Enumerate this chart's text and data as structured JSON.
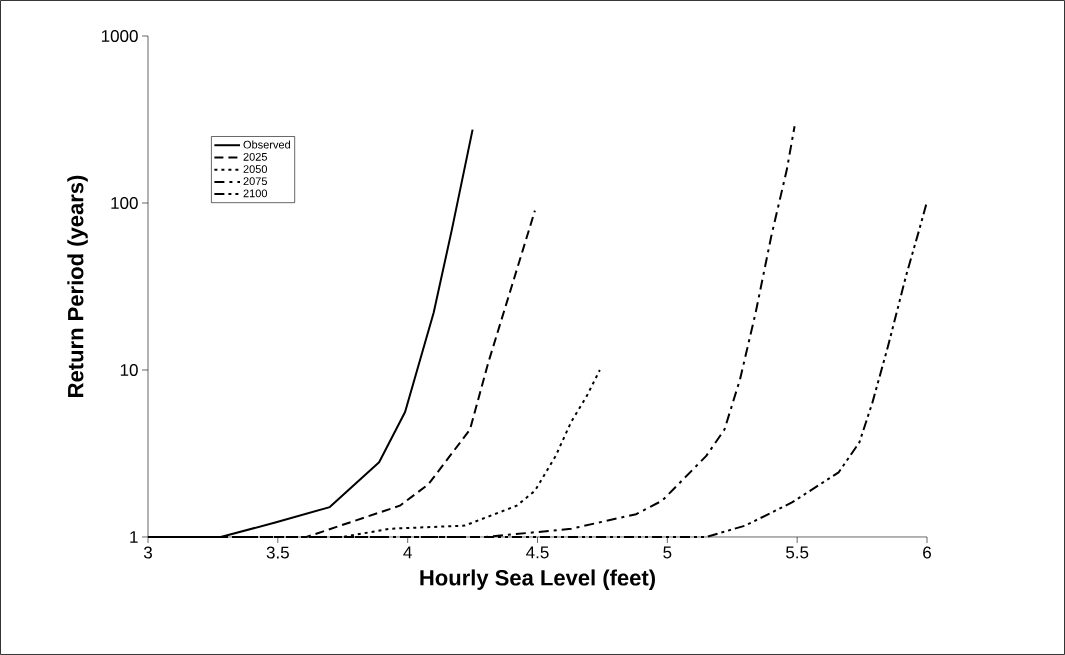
{
  "chart_data": {
    "type": "line",
    "xlabel": "Hourly Sea Level (feet)",
    "ylabel": "Return Period (years)",
    "xlim": [
      3,
      6
    ],
    "xticks": [
      3,
      3.5,
      4,
      4.5,
      5,
      5.5,
      6
    ],
    "ylim": [
      1,
      1000
    ],
    "yticks": [
      1,
      10,
      100,
      1000
    ],
    "log": "y",
    "grid": false,
    "legend": "top left",
    "marker": "none",
    "series": [
      {
        "name": "Observed",
        "color": "#000000",
        "line_style": "solid",
        "x": [
          3,
          3.28,
          3.49,
          3.7,
          3.89,
          3.99,
          4.1,
          4.17,
          4.25
        ],
        "values": [
          1,
          1,
          1.22,
          1.51,
          2.8,
          5.6,
          22,
          69,
          275
        ]
      },
      {
        "name": "2025",
        "color": "#000000",
        "line_style": "dashed",
        "x": [
          3,
          3.3,
          3.61,
          3.97,
          4.08,
          4.24,
          4.31,
          4.39,
          4.49
        ],
        "values": [
          1,
          1,
          1,
          1.54,
          2.07,
          4.4,
          11,
          28,
          90
        ]
      },
      {
        "name": "2050",
        "color": "#000000",
        "line_style": "dotted",
        "x": [
          3,
          3.75,
          3.93,
          4.22,
          4.42,
          4.49,
          4.57,
          4.63,
          4.69,
          4.74
        ],
        "values": [
          1,
          1,
          1.12,
          1.17,
          1.54,
          1.89,
          3.06,
          4.9,
          7,
          10
        ]
      },
      {
        "name": "2075",
        "color": "#000000",
        "line_style": "dashdot",
        "x": [
          3,
          4.3,
          4.63,
          4.88,
          4.98,
          5.15,
          5.22,
          5.28,
          5.34,
          5.4,
          5.46,
          5.49
        ],
        "values": [
          1,
          1,
          1.12,
          1.37,
          1.65,
          3.06,
          4.4,
          8.8,
          22,
          63,
          158,
          288
        ]
      },
      {
        "name": "2100",
        "color": "#000000",
        "line_style": "dashdotdot",
        "x": [
          3,
          5.15,
          5.3,
          5.48,
          5.66,
          5.74,
          5.79,
          5.85,
          5.92,
          5.97,
          6
        ],
        "values": [
          1,
          1,
          1.17,
          1.61,
          2.44,
          3.7,
          6.4,
          13.9,
          37,
          69,
          102
        ]
      }
    ]
  }
}
